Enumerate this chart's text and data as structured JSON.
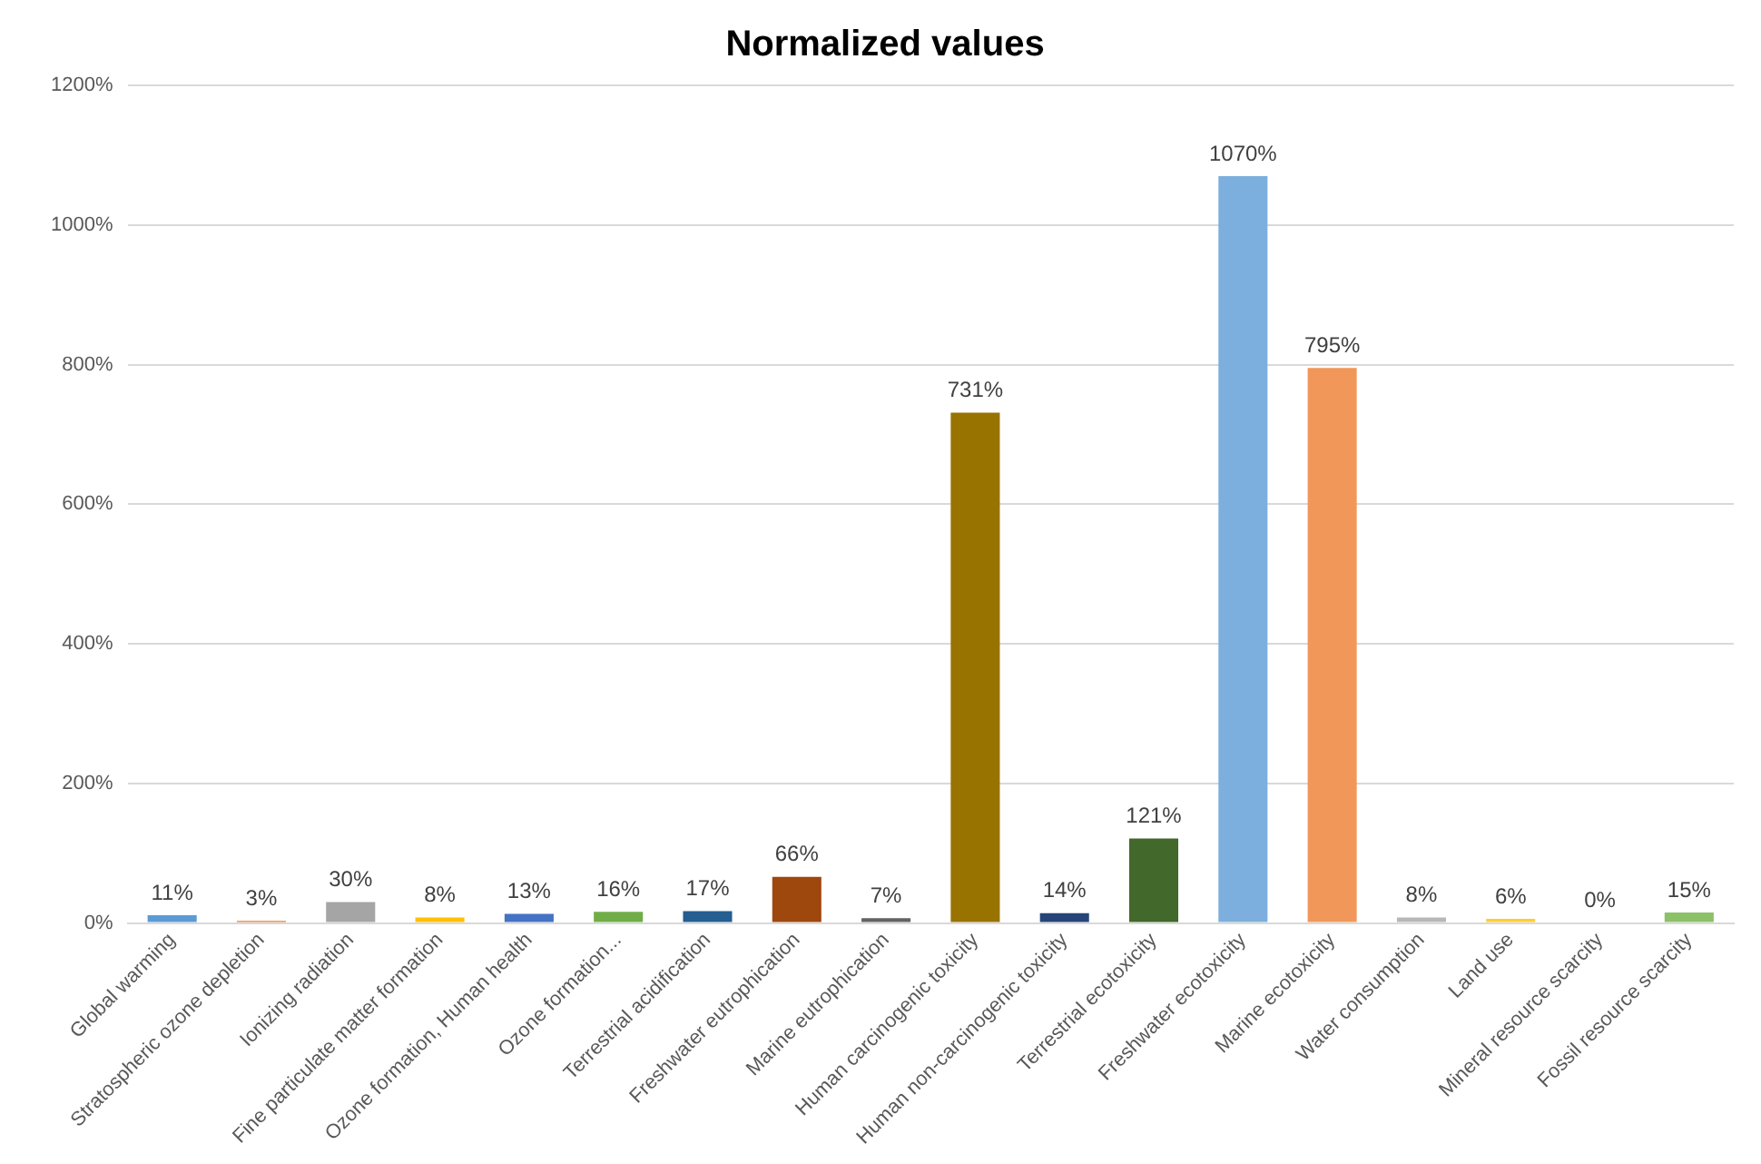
{
  "chart_data": {
    "type": "bar",
    "title": "Normalized values",
    "categories": [
      "Global warming",
      "Stratospheric ozone depletion",
      "Ionizing radiation",
      "Fine particulate matter formation",
      "Ozone formation, Human health",
      "Ozone formation...",
      "Terrestrial acidification",
      "Freshwater eutrophication",
      "Marine eutrophication",
      "Human carcinogenic toxicity",
      "Human non-carcinogenic toxicity",
      "Terrestrial ecotoxicity",
      "Freshwater ecotoxicity",
      "Marine ecotoxicity",
      "Water consumption",
      "Land use",
      "Mineral resource scarcity",
      "Fossil resource scarcity"
    ],
    "values": [
      11,
      3,
      30,
      8,
      13,
      16,
      17,
      66,
      7,
      731,
      14,
      121,
      1070,
      795,
      8,
      6,
      0,
      15
    ],
    "value_labels": [
      "11%",
      "3%",
      "30%",
      "8%",
      "13%",
      "16%",
      "17%",
      "66%",
      "7%",
      "731%",
      "14%",
      "121%",
      "1070%",
      "795%",
      "8%",
      "6%",
      "0%",
      "15%"
    ],
    "colors": [
      "#5b9bd5",
      "#ed7d31",
      "#a5a5a5",
      "#ffc000",
      "#4472c4",
      "#70ad47",
      "#255e91",
      "#9e480e",
      "#636363",
      "#997300",
      "#264478",
      "#43682b",
      "#7cafdd",
      "#f1975a",
      "#b7b7b7",
      "#ffcd33",
      "#698ed0",
      "#8cc168"
    ],
    "ylim": [
      0,
      1200
    ],
    "yticks": [
      {
        "value": 0,
        "label": "0%"
      },
      {
        "value": 200,
        "label": "200%"
      },
      {
        "value": 400,
        "label": "400%"
      },
      {
        "value": 600,
        "label": "600%"
      },
      {
        "value": 800,
        "label": "800%"
      },
      {
        "value": 1000,
        "label": "1000%"
      },
      {
        "value": 1200,
        "label": "1200%"
      }
    ],
    "grid": "y",
    "legend": false
  }
}
